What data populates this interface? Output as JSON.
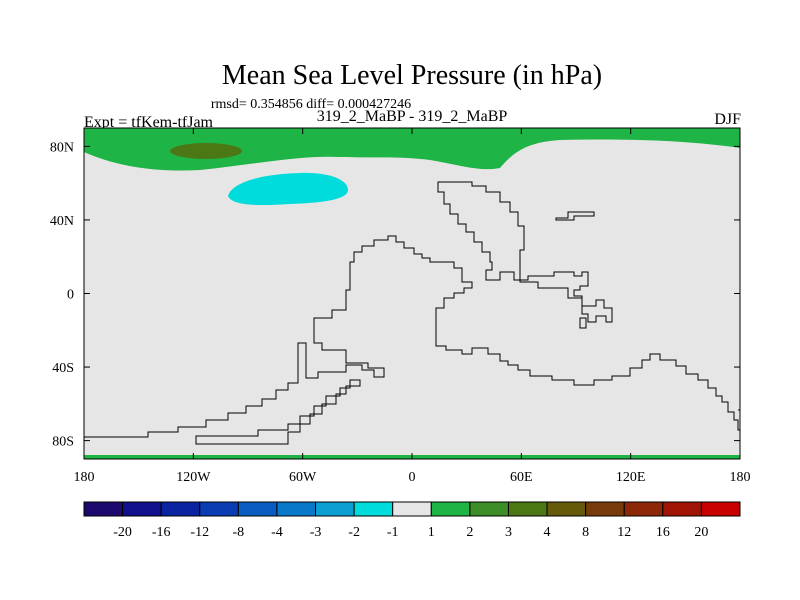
{
  "chart_data": {
    "type": "heatmap",
    "title": "Mean Sea Level Pressure (in hPa)",
    "stats": "rmsd= 0.354856 diff= 0.000427246",
    "left_label": "Expt = tfKem-tfJam",
    "center_label": "319_2_MaBP - 319_2_MaBP",
    "right_label": "DJF",
    "x_ticks": [
      {
        "lon": -180,
        "label": "180"
      },
      {
        "lon": -120,
        "label": "120W"
      },
      {
        "lon": -60,
        "label": "60W"
      },
      {
        "lon": 0,
        "label": "0"
      },
      {
        "lon": 60,
        "label": "60E"
      },
      {
        "lon": 120,
        "label": "120E"
      },
      {
        "lon": 180,
        "label": "180"
      }
    ],
    "y_ticks": [
      {
        "lat": 80,
        "label": "80N"
      },
      {
        "lat": 40,
        "label": "40N"
      },
      {
        "lat": 0,
        "label": "0"
      },
      {
        "lat": -40,
        "label": "40S"
      },
      {
        "lat": -80,
        "label": "80S"
      }
    ],
    "xlim": [
      -180,
      180
    ],
    "ylim": [
      -90,
      90
    ],
    "background_color": "#e6e6e6",
    "colorbar": {
      "levels": [
        "-20",
        "-16",
        "-12",
        "-8",
        "-4",
        "-3",
        "-2",
        "-1",
        "1",
        "2",
        "3",
        "4",
        "8",
        "12",
        "16",
        "20"
      ],
      "colors": [
        "#1e0a6e",
        "#100f8c",
        "#0a23a0",
        "#0a3cb4",
        "#0a5cc0",
        "#0a78c8",
        "#0aa0d2",
        "#00dcdc",
        "#e6e6e6",
        "#1eb446",
        "#3c8c28",
        "#4b7814",
        "#645a0a",
        "#783c0a",
        "#8c2808",
        "#a01405",
        "#c80000"
      ]
    },
    "regions": [
      {
        "name": "arctic-positive",
        "level": "1 to 2",
        "color": "#1eb446"
      },
      {
        "name": "arctic-core",
        "level": "3 to 4",
        "color": "#4b7814"
      },
      {
        "name": "north-pacific-negative",
        "level": "-2 to -1",
        "color": "#00dcdc"
      },
      {
        "name": "antarctic-edge",
        "level": "1 to 2",
        "color": "#1eb446"
      }
    ]
  }
}
